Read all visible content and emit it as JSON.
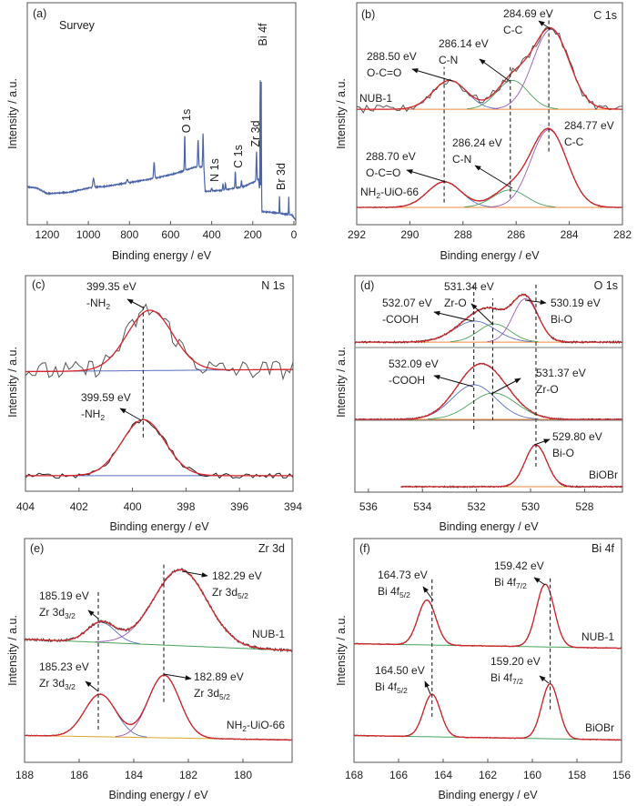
{
  "chart_data": [
    {
      "panel": "(a)",
      "type": "line",
      "title": "Survey",
      "xlabel": "Binding energy / eV",
      "ylabel": "Intensity / a.u.",
      "xlim": [
        1297,
        -9
      ],
      "ylim": [
        0,
        1
      ],
      "xticks": [
        1200,
        1000,
        800,
        600,
        400,
        200,
        0
      ],
      "grid": false,
      "color": "#4a64a8",
      "baseline": [
        [
          1297,
          0.17
        ],
        [
          1250,
          0.165
        ],
        [
          1230,
          0.155
        ],
        [
          1200,
          0.14
        ],
        [
          1100,
          0.145
        ],
        [
          1000,
          0.165
        ],
        [
          900,
          0.175
        ],
        [
          800,
          0.19
        ],
        [
          700,
          0.205
        ],
        [
          600,
          0.225
        ],
        [
          545,
          0.24
        ],
        [
          480,
          0.26
        ],
        [
          438,
          0.26
        ],
        [
          432,
          0.15
        ],
        [
          350,
          0.155
        ],
        [
          250,
          0.17
        ],
        [
          200,
          0.19
        ],
        [
          172,
          0.205
        ],
        [
          158,
          0.06
        ],
        [
          100,
          0.055
        ],
        [
          60,
          0.05
        ],
        [
          10,
          0.045
        ],
        [
          -9,
          0.02
        ]
      ],
      "peaks": [
        {
          "center": 975,
          "height": 0.04,
          "fwhm": 8
        },
        {
          "center": 810,
          "height": 0.015,
          "fwhm": 8
        },
        {
          "center": 680,
          "height": 0.07,
          "fwhm": 6
        },
        {
          "center": 531,
          "height": 0.16,
          "fwhm": 4
        },
        {
          "center": 466,
          "height": 0.12,
          "fwhm": 5
        },
        {
          "center": 442,
          "height": 0.15,
          "fwhm": 4
        },
        {
          "center": 400,
          "height": 0.012,
          "fwhm": 5
        },
        {
          "center": 345,
          "height": 0.03,
          "fwhm": 4
        },
        {
          "center": 333,
          "height": 0.03,
          "fwhm": 4
        },
        {
          "center": 285,
          "height": 0.075,
          "fwhm": 4
        },
        {
          "center": 255,
          "height": 0.03,
          "fwhm": 4
        },
        {
          "center": 182,
          "height": 0.13,
          "fwhm": 4
        },
        {
          "center": 164,
          "height": 0.54,
          "fwhm": 2.5
        },
        {
          "center": 159,
          "height": 0.59,
          "fwhm": 2.5
        },
        {
          "center": 70,
          "height": 0.08,
          "fwhm": 2.5
        },
        {
          "center": 25,
          "height": 0.08,
          "fwhm": 2.5
        }
      ],
      "peak_labels": [
        {
          "text": "O 1s",
          "center": 531
        },
        {
          "text": "N 1s",
          "center": 400
        },
        {
          "text": "C 1s",
          "center": 285
        },
        {
          "text": "Zr 3d",
          "center": 182
        },
        {
          "text": "Bi 4f",
          "center": 159
        },
        {
          "text": "Br 3d",
          "center": 70
        }
      ]
    },
    {
      "panel": "(b)",
      "type": "line",
      "title": "C 1s",
      "xlabel": "Binding energy / eV",
      "ylabel": "Intensity / a.u.",
      "xlim": [
        292,
        282
      ],
      "ylim": [
        0,
        1
      ],
      "xticks": [
        292,
        290,
        288,
        286,
        284,
        282
      ],
      "grid": false,
      "spectra": [
        {
          "name_parts": [
            "NUB-1",
            "",
            ""
          ],
          "baseline": [
            0.52,
            0.52
          ],
          "baseline_color": "#f0883c",
          "measured_color": "#555555",
          "noise": 0.018,
          "components": [
            {
              "center": 288.5,
              "height": 0.13,
              "fwhm": 1.5,
              "color": "#5a6fc0"
            },
            {
              "center": 286.14,
              "height": 0.13,
              "fwhm": 1.4,
              "color": "#4aa35c"
            },
            {
              "center": 284.69,
              "height": 0.36,
              "fwhm": 1.6,
              "color": "#9b59b6"
            }
          ]
        },
        {
          "name_parts": [
            "NH",
            "2",
            "-UiO-66"
          ],
          "baseline": [
            0.078,
            0.078
          ],
          "baseline_color": "#f0883c",
          "measured_color": "#222222",
          "noise": 0.002,
          "components": [
            {
              "center": 288.7,
              "height": 0.115,
              "fwhm": 1.5,
              "color": "#5a6fc0"
            },
            {
              "center": 286.24,
              "height": 0.078,
              "fwhm": 1.5,
              "color": "#4aa35c"
            },
            {
              "center": 284.77,
              "height": 0.35,
              "fwhm": 1.6,
              "color": "#9b59b6"
            }
          ]
        }
      ],
      "dashed": [
        {
          "x": 288.71,
          "y": [
            0.1,
            0.71
          ]
        },
        {
          "x": 286.22,
          "y": [
            0.12,
            0.72
          ]
        },
        {
          "x": 284.77,
          "y": [
            0.33,
            0.96
          ]
        }
      ],
      "annotations": [
        {
          "value": "284.69 eV",
          "label": "C-C",
          "sub": ""
        },
        {
          "value": "286.14 eV",
          "label": "C-N",
          "sub": ""
        },
        {
          "value": "288.50 eV",
          "label": "O-C=O",
          "sub": ""
        },
        {
          "value": "284.77 eV",
          "label": "C-C",
          "sub": ""
        },
        {
          "value": "286.24 eV",
          "label": "C-N",
          "sub": ""
        },
        {
          "value": "288.70 eV",
          "label": "O-C=O",
          "sub": ""
        }
      ]
    },
    {
      "panel": "(c)",
      "type": "line",
      "title": "N 1s",
      "xlabel": "Binding energy / eV",
      "ylabel": "Intensity / a.u.",
      "xlim": [
        404,
        394
      ],
      "ylim": [
        0,
        1
      ],
      "xticks": [
        404,
        402,
        400,
        398,
        396,
        394
      ],
      "grid": false,
      "spectra": [
        {
          "name_parts": [
            "",
            "",
            ""
          ],
          "baseline": [
            0.555,
            0.565
          ],
          "baseline_color": "#5a6fc0",
          "measured_color": "#555555",
          "noise": 0.045,
          "components": [
            {
              "center": 399.35,
              "height": 0.28,
              "fwhm": 2.0,
              "color": "#d9262a"
            }
          ]
        },
        {
          "name_parts": [
            "",
            "",
            ""
          ],
          "baseline": [
            0.072,
            0.072
          ],
          "baseline_color": "#5a6fc0",
          "measured_color": "#222222",
          "noise": 0.012,
          "components": [
            {
              "center": 399.59,
              "height": 0.26,
              "fwhm": 1.9,
              "color": "#d9262a"
            }
          ]
        }
      ],
      "dashed": [
        {
          "x": 399.6,
          "y": [
            0.25,
            0.865
          ]
        }
      ],
      "annotations": [
        {
          "value": "399.35 eV",
          "label": "-NH",
          "sub": "2"
        },
        {
          "value": "399.59 eV",
          "label": "-NH",
          "sub": "2"
        }
      ]
    },
    {
      "panel": "(d)",
      "type": "line",
      "title": "O 1s",
      "xlabel": "Binding energy / eV",
      "ylabel": "Intensity / a.u.",
      "xlim": [
        536.5,
        526.6
      ],
      "ylim": [
        0,
        1
      ],
      "xticks": [
        536,
        534,
        532,
        530,
        528
      ],
      "grid": false,
      "spectra": [
        {
          "name_parts": [
            "",
            "",
            ""
          ],
          "baseline": [
            0.693,
            0.693
          ],
          "baseline_color": "#f0883c",
          "measured_color": "#222222",
          "noise": 0.004,
          "components": [
            {
              "center": 532.07,
              "height": 0.097,
              "fwhm": 1.8,
              "color": "#5a6fc0"
            },
            {
              "center": 531.34,
              "height": 0.084,
              "fwhm": 1.4,
              "color": "#4aa35c"
            },
            {
              "center": 530.19,
              "height": 0.2,
              "fwhm": 1.1,
              "color": "#9b59b6"
            }
          ]
        },
        {
          "name_parts": [
            "",
            "",
            ""
          ],
          "baseline": [
            0.336,
            0.336
          ],
          "baseline_color": "#f0883c",
          "measured_color": "#222222",
          "noise": 0.003,
          "components": [
            {
              "center": 532.09,
              "height": 0.16,
              "fwhm": 1.9,
              "color": "#5a6fc0"
            },
            {
              "center": 531.37,
              "height": 0.122,
              "fwhm": 2.0,
              "color": "#4aa35c"
            }
          ]
        },
        {
          "name_parts": [
            "BiOBr",
            "",
            ""
          ],
          "baseline": [
            0.025,
            0.025
          ],
          "range": [
            534.8,
            526.6
          ],
          "baseline_color": "#f0883c",
          "measured_color": "#222222",
          "noise": 0.003,
          "components": [
            {
              "center": 529.8,
              "height": 0.193,
              "fwhm": 0.95,
              "color": "#d9262a"
            }
          ]
        }
      ],
      "dashed": [
        {
          "x": 532.1,
          "y": [
            0.29,
            0.96
          ]
        },
        {
          "x": 531.4,
          "y": [
            0.33,
            0.895
          ]
        },
        {
          "x": 529.8,
          "y": [
            0.118,
            0.96
          ]
        }
      ],
      "annotations": [
        {
          "value": "532.07 eV",
          "label": "-COOH",
          "sub": ""
        },
        {
          "value": "531.34 eV",
          "label": "Zr-O",
          "sub": ""
        },
        {
          "value": "530.19 eV",
          "label": "Bi-O",
          "sub": ""
        },
        {
          "value": "532.09 eV",
          "label": "-COOH",
          "sub": ""
        },
        {
          "value": "531.37 eV",
          "label": "Zr-O",
          "sub": ""
        },
        {
          "value": "529.80 eV",
          "label": "Bi-O",
          "sub": ""
        }
      ]
    },
    {
      "panel": "(e)",
      "type": "line",
      "title": "Zr 3d",
      "xlabel": "Binding energy / eV",
      "ylabel": "Intensity / a.u.",
      "xlim": [
        188,
        178.2
      ],
      "ylim": [
        0,
        1
      ],
      "xticks": [
        188,
        186,
        184,
        182,
        180
      ],
      "grid": false,
      "spectra": [
        {
          "name_parts": [
            "NUB-1",
            "",
            ""
          ],
          "baseline": [
            0.55,
            0.5
          ],
          "baseline_color": "#4aa35c",
          "measured_color": "#444444",
          "noise": 0.006,
          "components": [
            {
              "center": 185.19,
              "height": 0.09,
              "fwhm": 1.2,
              "color": "#5a6fc0"
            },
            {
              "center": 182.29,
              "height": 0.34,
              "fwhm": 2.3,
              "color": "#9b59b6"
            }
          ]
        },
        {
          "name_parts": [
            "NH",
            "2",
            "-UiO-66"
          ],
          "baseline": [
            0.12,
            0.1
          ],
          "baseline_color": "#d9a62a",
          "measured_color": "#222222",
          "noise": 0.002,
          "components": [
            {
              "center": 185.23,
              "height": 0.19,
              "fwhm": 1.35,
              "color": "#5a6fc0"
            },
            {
              "center": 182.89,
              "height": 0.28,
              "fwhm": 1.35,
              "color": "#9b59b6"
            }
          ]
        }
      ],
      "dashed": [
        {
          "x": 185.3,
          "y": [
            0.147,
            0.767
          ]
        },
        {
          "x": 182.9,
          "y": [
            0.27,
            0.89
          ]
        }
      ],
      "annotations": [
        {
          "value": "185.19 eV",
          "label": "Zr 3d",
          "sub": "3/2"
        },
        {
          "value": "182.29 eV",
          "label": "Zr 3d",
          "sub": "5/2"
        },
        {
          "value": "185.23 eV",
          "label": "Zr 3d",
          "sub": "3/2"
        },
        {
          "value": "182.89 eV",
          "label": "Zr 3d",
          "sub": "5/2"
        }
      ]
    },
    {
      "panel": "(f)",
      "type": "line",
      "title": "Bi 4f",
      "xlabel": "Binding energy / eV",
      "ylabel": "Intensity / a.u.",
      "xlim": [
        168,
        156
      ],
      "ylim": [
        0,
        1
      ],
      "xticks": [
        168,
        166,
        164,
        162,
        160,
        158,
        156
      ],
      "grid": false,
      "spectra": [
        {
          "name_parts": [
            "NUB-1",
            "",
            ""
          ],
          "baseline": [
            0.53,
            0.51
          ],
          "baseline_color": "#4aa35c",
          "measured_color": "#222222",
          "noise": 0.002,
          "components": [
            {
              "center": 164.73,
              "height": 0.2,
              "fwhm": 0.95,
              "color": "#d9262a"
            },
            {
              "center": 159.42,
              "height": 0.28,
              "fwhm": 0.95,
              "color": "#d9262a"
            }
          ]
        },
        {
          "name_parts": [
            "BiOBr",
            "",
            ""
          ],
          "baseline": [
            0.12,
            0.1
          ],
          "baseline_color": "#4aa35c",
          "measured_color": "#222222",
          "noise": 0.002,
          "components": [
            {
              "center": 164.5,
              "height": 0.19,
              "fwhm": 0.9,
              "color": "#d9262a"
            },
            {
              "center": 159.2,
              "height": 0.245,
              "fwhm": 0.9,
              "color": "#d9262a"
            }
          ]
        }
      ],
      "dashed": [
        {
          "x": 164.5,
          "y": [
            0.204,
            0.829
          ]
        },
        {
          "x": 159.2,
          "y": [
            0.237,
            0.829
          ]
        }
      ],
      "annotations": [
        {
          "value": "164.73 eV",
          "label": "Bi 4f",
          "sub": "5/2"
        },
        {
          "value": "159.42 eV",
          "label": "Bi 4f",
          "sub": "7/2"
        },
        {
          "value": "164.50 eV",
          "label": "Bi 4f",
          "sub": "5/2"
        },
        {
          "value": "159.20 eV",
          "label": "Bi 4f",
          "sub": "7/2"
        }
      ]
    }
  ]
}
